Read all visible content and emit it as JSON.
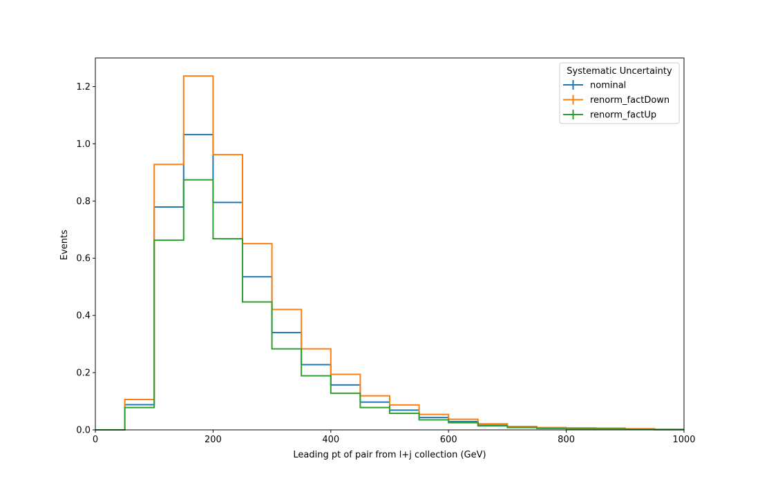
{
  "chart_data": {
    "type": "step-histogram",
    "title": "",
    "xlabel": "Leading pt of pair from l+j collection (GeV)",
    "ylabel": "Events",
    "xlim": [
      0,
      1000
    ],
    "ylim": [
      0,
      1.3
    ],
    "xticks": [
      0,
      200,
      400,
      600,
      800,
      1000
    ],
    "xtick_labels": [
      "0",
      "200",
      "400",
      "600",
      "800",
      "1000"
    ],
    "yticks": [
      0.0,
      0.2,
      0.4,
      0.6,
      0.8,
      1.0,
      1.2
    ],
    "ytick_labels": [
      "0.0",
      "0.2",
      "0.4",
      "0.6",
      "0.8",
      "1.0",
      "1.2"
    ],
    "grid": false,
    "legend": {
      "title": "Systematic Uncertainty",
      "placement": "top-right"
    },
    "bin_edges": [
      0,
      50,
      100,
      150,
      200,
      250,
      300,
      350,
      400,
      450,
      500,
      550,
      600,
      650,
      700,
      750,
      800,
      850,
      900,
      950,
      1000
    ],
    "series": [
      {
        "name": "nominal",
        "color": "#1f77b4",
        "values": [
          0.0,
          0.088,
          0.779,
          1.032,
          0.795,
          0.535,
          0.34,
          0.228,
          0.157,
          0.097,
          0.069,
          0.043,
          0.029,
          0.016,
          0.009,
          0.006,
          0.005,
          0.005,
          0.002,
          0.001
        ]
      },
      {
        "name": "renorm_factDown",
        "color": "#ff7f0e",
        "values": [
          0.0,
          0.106,
          0.928,
          1.237,
          0.962,
          0.651,
          0.421,
          0.283,
          0.194,
          0.119,
          0.087,
          0.054,
          0.037,
          0.021,
          0.012,
          0.008,
          0.007,
          0.006,
          0.004,
          0.002
        ]
      },
      {
        "name": "renorm_factUp",
        "color": "#2ca02c",
        "values": [
          0.0,
          0.078,
          0.663,
          0.874,
          0.668,
          0.447,
          0.283,
          0.189,
          0.128,
          0.078,
          0.058,
          0.035,
          0.025,
          0.014,
          0.008,
          0.005,
          0.004,
          0.004,
          0.002,
          0.001
        ]
      }
    ]
  }
}
